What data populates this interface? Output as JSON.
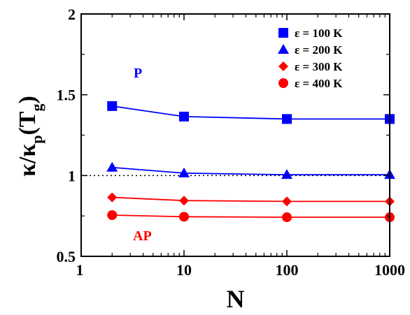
{
  "chart_data": {
    "type": "line",
    "title": "",
    "xlabel": "N",
    "ylabel": {
      "main": "κ/κ",
      "sub_p": "p",
      "paren_open": "(",
      "T": "T",
      "sub_g": "g",
      "paren_close": ")"
    },
    "x_scale": "log",
    "xlim": [
      1,
      1000
    ],
    "ylim": [
      0.5,
      2
    ],
    "x_ticks": [
      1,
      10,
      100,
      1000
    ],
    "x_tick_labels": [
      "1",
      "10",
      "100",
      "1000"
    ],
    "y_ticks": [
      0.5,
      1,
      1.5,
      2
    ],
    "y_tick_labels": [
      "0.5",
      "1",
      "1.5",
      "2"
    ],
    "grid": false,
    "legend_position": "top-right",
    "reference_line": {
      "y": 1,
      "style": "dotted",
      "color": "#000000"
    },
    "x": [
      2,
      10,
      100,
      1000
    ],
    "series": [
      {
        "name": "ε = 100 K",
        "marker": "square",
        "color": "#0000ff",
        "values": [
          1.43,
          1.365,
          1.35,
          1.35
        ]
      },
      {
        "name": "ε = 200 K",
        "marker": "triangle",
        "color": "#0000ff",
        "values": [
          1.05,
          1.015,
          1.005,
          1.005
        ]
      },
      {
        "name": "ε = 300 K",
        "marker": "diamond",
        "color": "#ff0000",
        "values": [
          0.865,
          0.845,
          0.84,
          0.84
        ]
      },
      {
        "name": "ε = 400 K",
        "marker": "circle",
        "color": "#ff0000",
        "values": [
          0.755,
          0.745,
          0.742,
          0.742
        ]
      }
    ],
    "annotations": [
      {
        "text": "P",
        "color": "#0000ff",
        "x": 2.2,
        "y": 1.63
      },
      {
        "text": "AP",
        "color": "#ff0000",
        "x": 2.5,
        "y": 0.63
      }
    ]
  }
}
